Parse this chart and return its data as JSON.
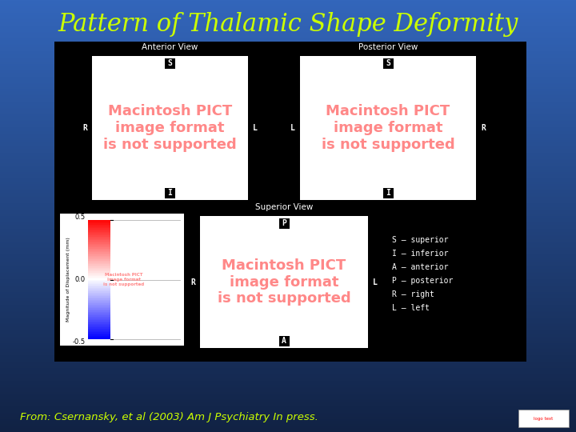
{
  "title": "Pattern of Thalamic Shape Deformity",
  "title_color": "#CCFF00",
  "title_fontsize": 22,
  "bg_color_top": "#3366AA",
  "bg_color_bottom": "#112255",
  "main_panel_bg": "#000000",
  "white_box_color": "#FFFFFF",
  "label_bg_color": "#000000",
  "label_text_color": "#FFFFFF",
  "ylabel_text": "Magnitude of Displacement (mm)",
  "ytick_labels": [
    "0.5",
    "0.0",
    "-0.5"
  ],
  "anterior_view_label": "Anterior View",
  "posterior_view_label": "Posterior View",
  "superior_view_label": "Superior View",
  "footnote": "From: Csernansky, et al (2003) Am J Psychiatry In press.",
  "footnote_color": "#CCFF00",
  "legend_lines": [
    "S – superior",
    "I – inferior",
    "A – anterior",
    "P – posterior",
    "R – right",
    "L – left"
  ],
  "legend_color": "#FFFFFF",
  "pict_color": "#FF8888",
  "panel_label_color": "#FFFFFF",
  "panel_label_fontsize": 7.5,
  "dir_label_fontsize": 7,
  "pict_fontsize": 13
}
